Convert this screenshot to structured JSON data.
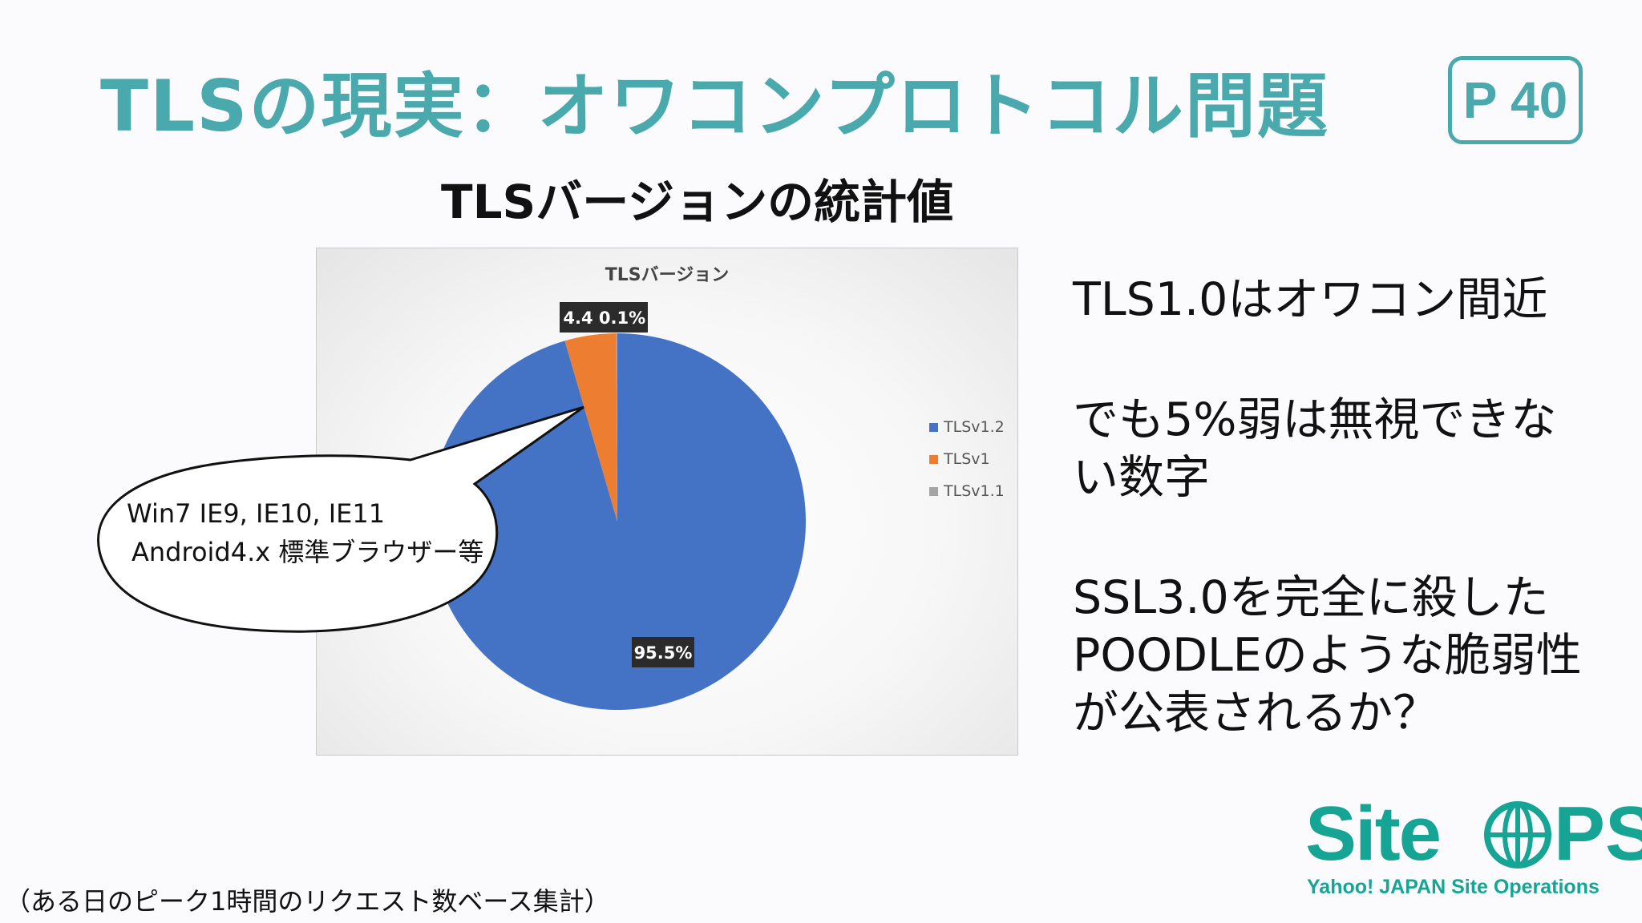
{
  "slide": {
    "title": "TLSの現実：オワコンプロトコル問題",
    "page_number": "P 40",
    "subtitle": "TLSバージョンの統計値",
    "bullets": [
      "TLS1.0はオワコン間近",
      "でも5%弱は無視できない数字",
      "SSL3.0を完全に殺したPOODLEのような脆弱性が公表されるか？"
    ],
    "footnote": "（ある日のピーク1時間のリクエスト数ベース集計）",
    "callout": {
      "line1": "Win7 IE9, IE10, IE11",
      "line2": "Android4.x 標準ブラウザー等"
    },
    "logo": {
      "word_left": "Site",
      "word_right": "PS",
      "tagline": "Yahoo! JAPAN  Site Operations",
      "color": "#16a595"
    },
    "accent_color": "#4aa9ad"
  },
  "chart_data": {
    "type": "pie",
    "title": "TLSバージョン",
    "series": [
      {
        "name": "TLSv1.2",
        "value": 95.5,
        "label": "95.5%",
        "color": "#4472c4"
      },
      {
        "name": "TLSv1",
        "value": 4.4,
        "label": "4.4",
        "color": "#ed7d31"
      },
      {
        "name": "TLSv1.1",
        "value": 0.1,
        "label": "0.1%",
        "color": "#a5a5a5"
      }
    ],
    "legend_position": "right"
  }
}
